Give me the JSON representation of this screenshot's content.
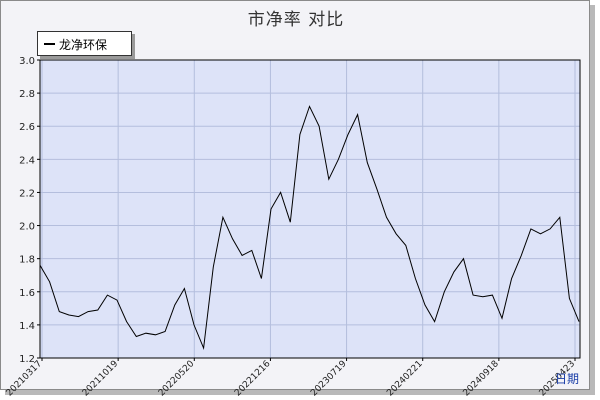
{
  "chart_data": {
    "type": "line",
    "title": "市净率  对比",
    "xlabel": "日期",
    "ylabel": "",
    "ylim": [
      1.2,
      3.0
    ],
    "yticks": [
      "1.2",
      "1.4",
      "1.6",
      "1.8",
      "2.0",
      "2.2",
      "2.4",
      "2.6",
      "2.8",
      "3.0"
    ],
    "xticks": [
      "20210317",
      "20211019",
      "20220520",
      "20221216",
      "20230719",
      "20240221",
      "20240918",
      "20250423"
    ],
    "legend_position": "top-left",
    "grid": true,
    "colors": {
      "plot_bg": "#dde3f8",
      "grid": "#b4bedd",
      "line": "#000000"
    },
    "x": [
      "20210317",
      "20210401",
      "20210420",
      "20210510",
      "20210601",
      "20210701",
      "20210801",
      "20210901",
      "20211001",
      "20211019",
      "20211110",
      "20211201",
      "20220101",
      "20220201",
      "20220301",
      "20220401",
      "20220501",
      "20220520",
      "20220615",
      "20220701",
      "20220801",
      "20220901",
      "20221001",
      "20221101",
      "20221201",
      "20221216",
      "20230101",
      "20230201",
      "20230301",
      "20230401",
      "20230501",
      "20230601",
      "20230701",
      "20230719",
      "20230801",
      "20230901",
      "20231001",
      "20231101",
      "20231201",
      "20240101",
      "20240201",
      "20240221",
      "20240315",
      "20240415",
      "20240515",
      "20240615",
      "20240715",
      "20240815",
      "20240918",
      "20241015",
      "20241115",
      "20241215",
      "20250115",
      "20250215",
      "20250315",
      "20250401",
      "20250423"
    ],
    "series": [
      {
        "name": "龙净环保",
        "values": [
          1.76,
          1.66,
          1.48,
          1.46,
          1.45,
          1.48,
          1.49,
          1.58,
          1.55,
          1.42,
          1.33,
          1.35,
          1.34,
          1.36,
          1.52,
          1.62,
          1.4,
          1.26,
          1.75,
          2.05,
          1.92,
          1.82,
          1.85,
          1.68,
          2.1,
          2.2,
          2.02,
          2.55,
          2.72,
          2.6,
          2.28,
          2.4,
          2.55,
          2.67,
          2.38,
          2.22,
          2.05,
          1.95,
          1.88,
          1.68,
          1.52,
          1.42,
          1.6,
          1.72,
          1.8,
          1.58,
          1.57,
          1.58,
          1.44,
          1.68,
          1.82,
          1.98,
          1.95,
          1.98,
          2.05,
          1.56,
          1.42
        ]
      }
    ]
  }
}
